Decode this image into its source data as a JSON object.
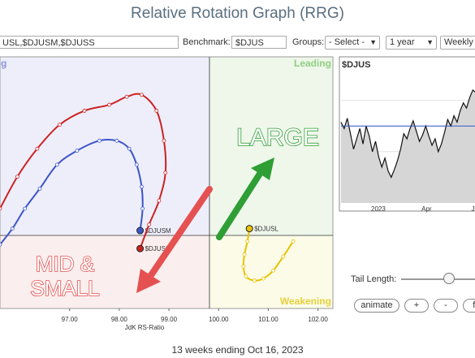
{
  "title": "Relative Rotation Graph (RRG)",
  "toolbar": {
    "symbols_value": "USL,$DJUSM,$DJUSS",
    "benchmark_label": "Benchmark:",
    "benchmark_value": "$DJUS",
    "groups_label": "Groups:",
    "groups_value": "- Select -",
    "period_value": "1 year",
    "frequency_value": "Weekly"
  },
  "rrg": {
    "quadrants": {
      "leading": "Leading",
      "weakening": "Weakening",
      "improving_partial": "g"
    },
    "x_axis_title": "JdK RS-Ratio",
    "x_ticks": [
      "97.00",
      "98.00",
      "99.00",
      "100.00",
      "101.00",
      "102.00"
    ],
    "x_range": [
      95.6,
      102.3
    ],
    "y_range": [
      97.3,
      103.6
    ],
    "series": [
      {
        "name": "$DJUSM",
        "color": "#3b55c8",
        "tail": [
          [
            95.6,
            98.9
          ],
          [
            95.85,
            99.3
          ],
          [
            96.1,
            99.8
          ],
          [
            96.4,
            100.3
          ],
          [
            96.75,
            100.9
          ],
          [
            97.15,
            101.25
          ],
          [
            97.6,
            101.5
          ],
          [
            97.95,
            101.5
          ],
          [
            98.2,
            101.3
          ],
          [
            98.35,
            100.9
          ],
          [
            98.45,
            100.35
          ],
          [
            98.47,
            99.8
          ],
          [
            98.42,
            99.25
          ]
        ]
      },
      {
        "name": "$DJUSS",
        "color": "#cc2222",
        "tail": [
          [
            95.6,
            99.8
          ],
          [
            95.95,
            100.6
          ],
          [
            96.35,
            101.3
          ],
          [
            96.8,
            101.9
          ],
          [
            97.3,
            102.25
          ],
          [
            97.8,
            102.4
          ],
          [
            98.15,
            102.6
          ],
          [
            98.45,
            102.65
          ],
          [
            98.75,
            102.25
          ],
          [
            98.9,
            101.5
          ],
          [
            98.93,
            100.7
          ],
          [
            98.8,
            100.0
          ],
          [
            98.6,
            99.4
          ],
          [
            98.42,
            98.8
          ]
        ]
      },
      {
        "name": "$DJUSL",
        "color": "#e6c200",
        "tail": [
          [
            101.5,
            98.98
          ],
          [
            101.3,
            98.6
          ],
          [
            101.1,
            98.25
          ],
          [
            100.9,
            98.05
          ],
          [
            100.72,
            98.0
          ],
          [
            100.55,
            98.1
          ],
          [
            100.5,
            98.35
          ],
          [
            100.52,
            98.65
          ],
          [
            100.58,
            98.98
          ],
          [
            100.62,
            99.3
          ]
        ]
      }
    ],
    "annotations": {
      "large": "LARGE",
      "mid_small_line1": "MID &",
      "mid_small_line2": "SMALL"
    }
  },
  "price_chart": {
    "symbol": "$DJUS",
    "x_labels": [
      "2023",
      "Apr",
      "Ju"
    ],
    "values": [
      0.63,
      0.58,
      0.66,
      0.54,
      0.42,
      0.5,
      0.58,
      0.46,
      0.6,
      0.52,
      0.4,
      0.48,
      0.36,
      0.28,
      0.35,
      0.25,
      0.2,
      0.26,
      0.33,
      0.42,
      0.54,
      0.5,
      0.58,
      0.64,
      0.56,
      0.48,
      0.53,
      0.6,
      0.52,
      0.45,
      0.5,
      0.4,
      0.46,
      0.55,
      0.65,
      0.6,
      0.68,
      0.63,
      0.72,
      0.78,
      0.74,
      0.82,
      0.88,
      0.86,
      0.95
    ],
    "reference_level": 0.6
  },
  "controls": {
    "tail_length_label": "Tail Length:",
    "tail_length_value": 0.5,
    "animate_label": "animate",
    "plus_label": "+",
    "minus_label": "-",
    "fit_label": "fi"
  },
  "footer": "13 weeks ending Oct 16, 2023",
  "colors": {
    "improving_bg": "#eeeefb",
    "leading_bg": "#eef7ea",
    "lagging_bg": "#fbeeee",
    "weakening_bg": "#fbfbe8",
    "large_arrow": "#2e9e35",
    "small_arrow": "#e55050",
    "large_text": "#2e9e35",
    "small_text": "#e55050"
  }
}
